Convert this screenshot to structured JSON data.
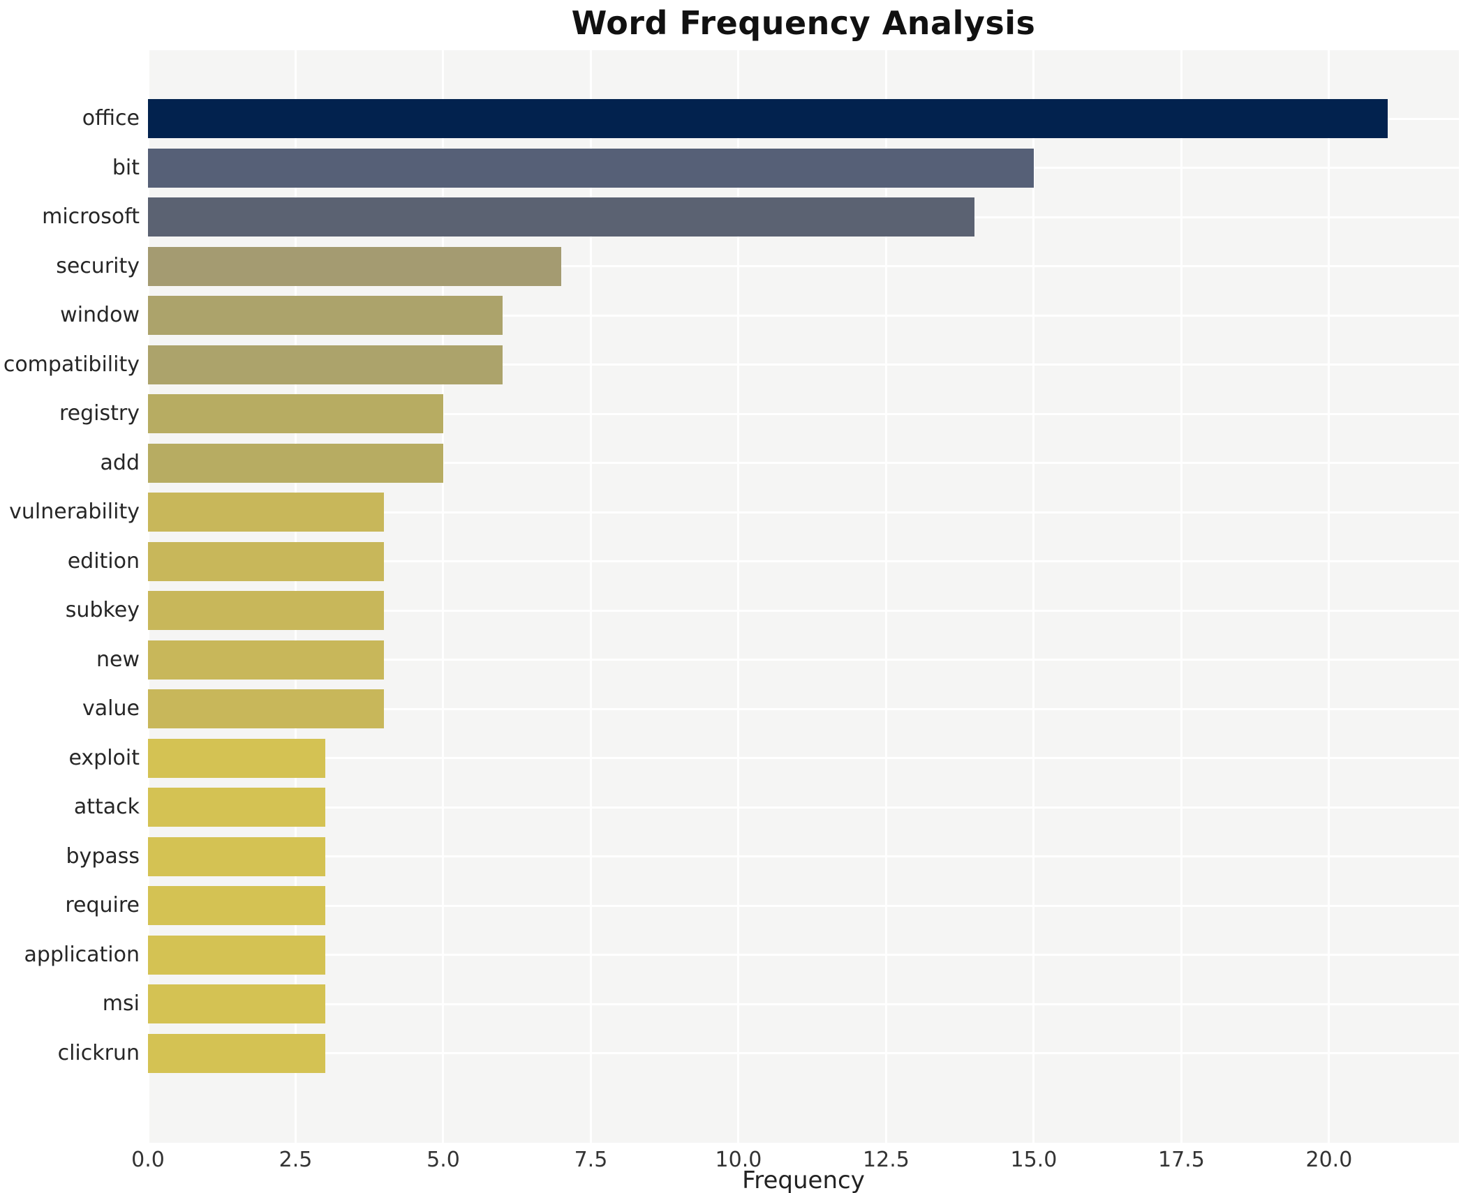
{
  "title": "Word Frequency Analysis",
  "chart_data": {
    "type": "bar",
    "orientation": "horizontal",
    "title": "Word Frequency Analysis",
    "xlabel": "Frequency",
    "ylabel": "",
    "categories": [
      "office",
      "bit",
      "microsoft",
      "security",
      "window",
      "compatibility",
      "registry",
      "add",
      "vulnerability",
      "edition",
      "subkey",
      "new",
      "value",
      "exploit",
      "attack",
      "bypass",
      "require",
      "application",
      "msi",
      "clickrun"
    ],
    "values": [
      21,
      15,
      14,
      7,
      6,
      6,
      5,
      5,
      4,
      4,
      4,
      4,
      4,
      3,
      3,
      3,
      3,
      3,
      3,
      3
    ],
    "bar_colors": [
      "#02224e",
      "#566077",
      "#5b6272",
      "#a49b71",
      "#aca36b",
      "#aca36b",
      "#b7ac62",
      "#b7ac62",
      "#c8b75a",
      "#c8b75a",
      "#c8b75a",
      "#c8b75a",
      "#c8b75a",
      "#d4c253",
      "#d4c253",
      "#d4c253",
      "#d4c253",
      "#d4c253",
      "#d4c253",
      "#d4c253"
    ],
    "x_tick_labels": [
      "0.0",
      "2.5",
      "5.0",
      "7.5",
      "10.0",
      "12.5",
      "15.0",
      "17.5",
      "20.0"
    ],
    "x_tick_values": [
      0,
      2.5,
      5,
      7.5,
      10,
      12.5,
      15,
      17.5,
      20
    ],
    "xlim": [
      0,
      22.2
    ],
    "grid": true,
    "legend": false,
    "plot_bg_color": "#f5f5f4",
    "grid_color": "#ffffff",
    "title_color": "#111111",
    "label_color": "#262626"
  }
}
